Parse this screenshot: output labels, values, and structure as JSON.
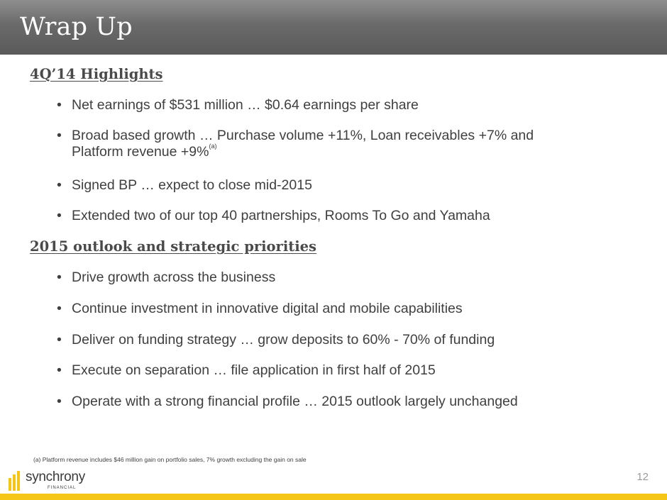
{
  "header": {
    "title": "Wrap Up"
  },
  "highlights": {
    "heading": "4Q’14 Highlights",
    "bullets": [
      {
        "text": "Net earnings of $531 million … $0.64 earnings per share"
      },
      {
        "line1": "Broad based growth … Purchase volume +11%, Loan receivables +7% and",
        "line2": "Platform revenue +9%",
        "note": "(a)"
      },
      {
        "text": "Signed BP … expect to close mid-2015"
      },
      {
        "text": "Extended two of our top 40 partnerships, Rooms To Go and Yamaha"
      }
    ]
  },
  "outlook": {
    "heading": "2015 outlook and strategic priorities",
    "bullets": [
      {
        "text": "Drive growth across the business"
      },
      {
        "text": "Continue investment in innovative digital and mobile capabilities"
      },
      {
        "text": "Deliver on funding strategy … grow deposits to 60% - 70%  of funding"
      },
      {
        "text": "Execute on separation … file application in first half of 2015"
      },
      {
        "text": "Operate with a strong financial profile … 2015 outlook largely unchanged"
      }
    ]
  },
  "bullet_glyph": "•",
  "footnote": "(a) Platform revenue includes $46 million gain on portfolio sales, 7% growth excluding the gain on sale",
  "page_number": "12",
  "logo": {
    "word": "synchrony",
    "sub": "FINANCIAL"
  },
  "colors": {
    "title_bar": "#6a6a6a",
    "accent_band": "#f5c518",
    "text": "#3f3f3f"
  }
}
